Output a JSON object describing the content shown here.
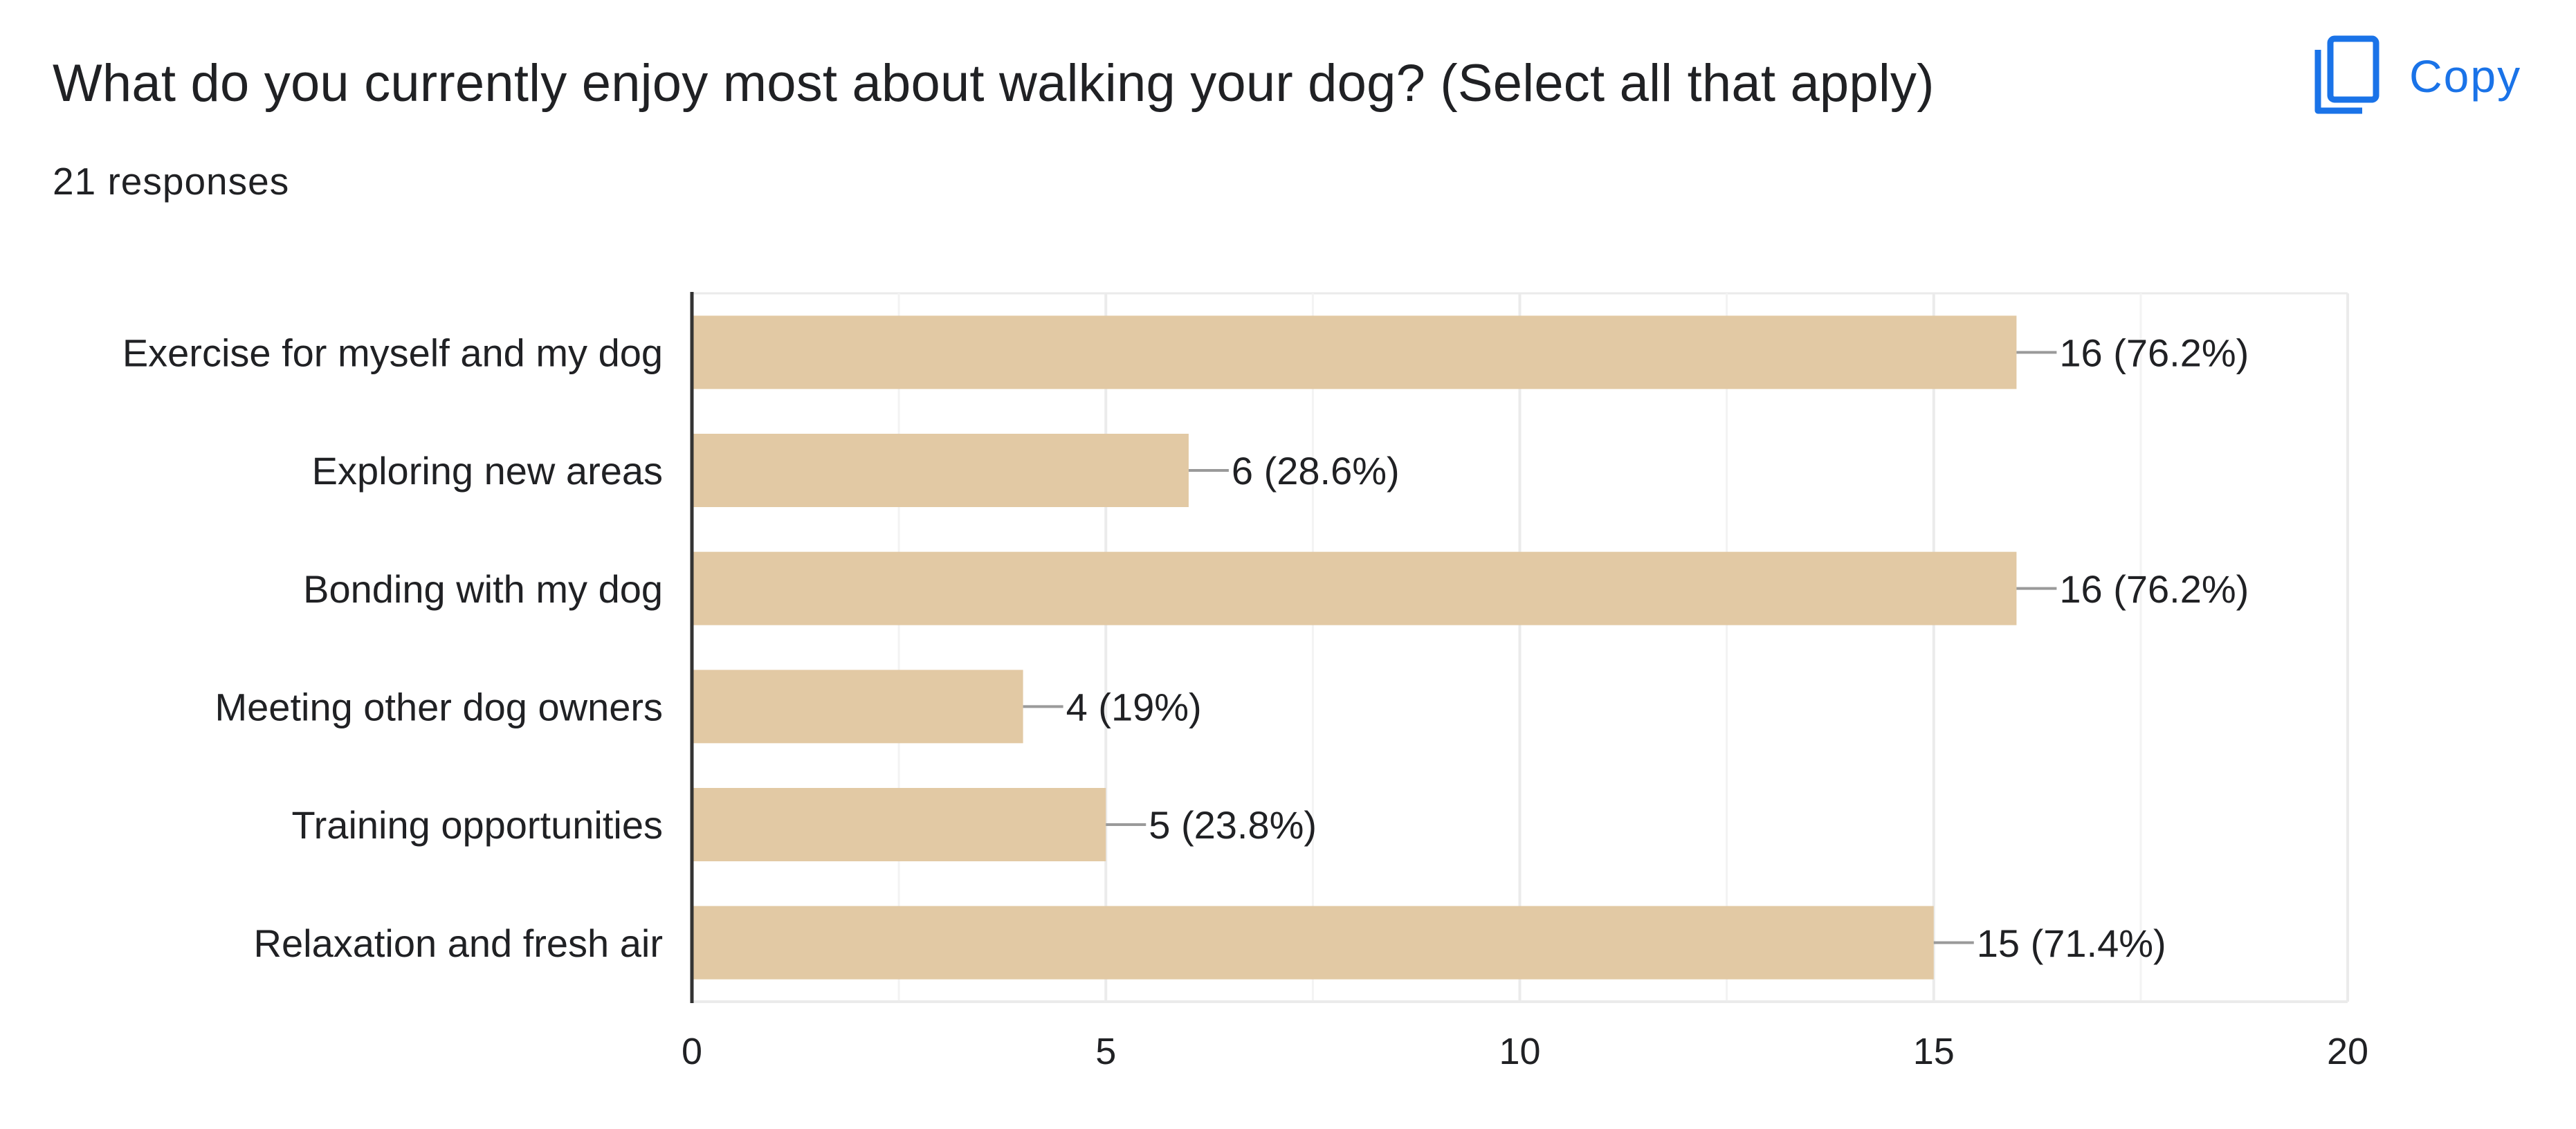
{
  "question": {
    "title": "What do you currently enjoy most about walking your dog? (Select all that apply)",
    "responses": "21 responses"
  },
  "toolbar": {
    "copy_label": "Copy",
    "copy_icon": "copy-icon"
  },
  "colors": {
    "bar": "#e2c9a4",
    "copy_accent": "#1a73e8",
    "text": "#202124",
    "gridline": "#ebebeb",
    "axis": "#333333",
    "connector": "#9a9a9a"
  },
  "chart_data": {
    "type": "bar",
    "orientation": "horizontal",
    "categories": [
      "Exercise for myself and my dog",
      "Exploring new areas",
      "Bonding with my dog",
      "Meeting other dog owners",
      "Training opportunities",
      "Relaxation and fresh air"
    ],
    "values": [
      16,
      6,
      16,
      4,
      5,
      15
    ],
    "data_labels": [
      "16 (76.2%)",
      "6 (28.6%)",
      "16 (76.2%)",
      "4 (19%)",
      "5 (23.8%)",
      "15 (71.4%)"
    ],
    "xlim": [
      0,
      20
    ],
    "x_ticks": [
      0,
      5,
      10,
      15,
      20
    ],
    "x_tick_labels": [
      "0",
      "5",
      "10",
      "15",
      "20"
    ],
    "minor_gridlines": [
      2.5,
      7.5,
      12.5,
      17.5
    ],
    "grid": true,
    "legend": "none",
    "title": "",
    "xlabel": "",
    "ylabel": ""
  }
}
